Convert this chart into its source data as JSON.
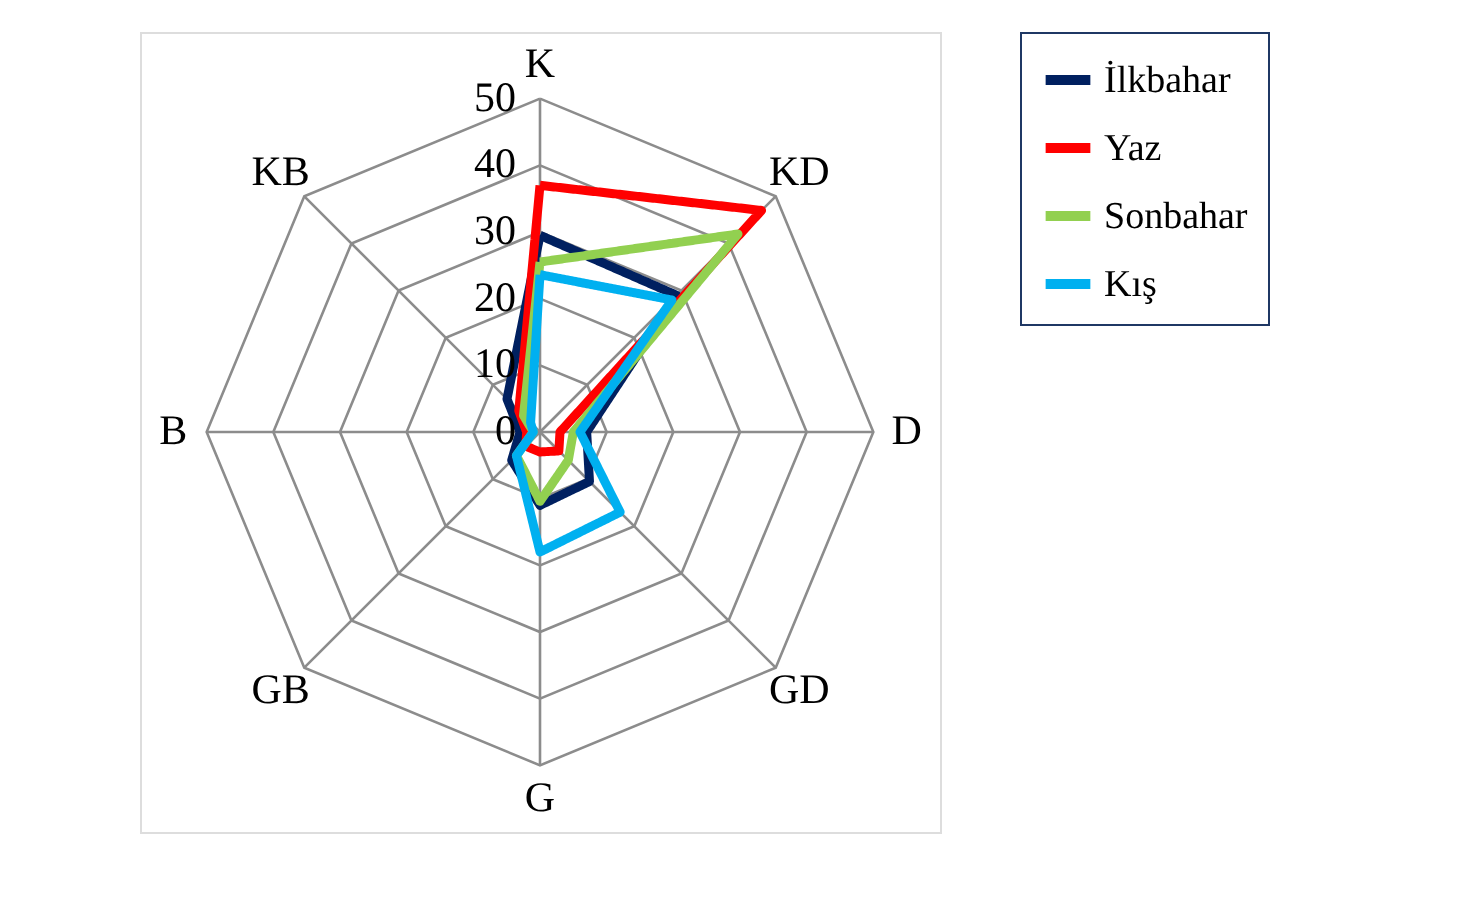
{
  "chart_data": {
    "type": "radar",
    "categories": [
      "K",
      "KD",
      "D",
      "GD",
      "G",
      "GB",
      "B",
      "KB"
    ],
    "ylim": [
      0,
      50
    ],
    "yticks": [
      0,
      10,
      20,
      30,
      40,
      50
    ],
    "grid": true,
    "legend": "right",
    "line_style": "solid",
    "marker": "none",
    "series": [
      {
        "name": "İlkbahar",
        "color": "#002060",
        "values": [
          29.5,
          29,
          7,
          10.5,
          11,
          6,
          3,
          7
        ]
      },
      {
        "name": "Yaz",
        "color": "#ff0000",
        "values": [
          37,
          47,
          3,
          4,
          3,
          3,
          2,
          4.5
        ]
      },
      {
        "name": "Sonbahar",
        "color": "#92d050",
        "values": [
          25.5,
          42,
          5,
          6,
          10.4,
          5,
          1,
          3.5
        ]
      },
      {
        "name": "Kış",
        "color": "#00b0f0",
        "values": [
          23.6,
          28,
          6,
          17,
          18,
          5,
          1,
          2
        ]
      }
    ]
  }
}
